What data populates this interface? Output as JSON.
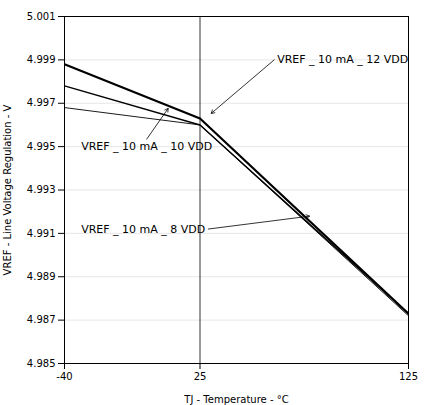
{
  "chart_data": {
    "type": "line",
    "xlabel": "TJ - Temperature - °C",
    "ylabel": "VREF - Line Voltage Regulation - V",
    "x": [
      -40,
      25,
      125
    ],
    "series": [
      {
        "color": "black",
        "values": [
          4.9988,
          4.9963,
          4.9873
        ]
      },
      {
        "color": "black",
        "values": [
          4.9978,
          4.996,
          4.9873
        ]
      },
      {
        "color": "black",
        "values": [
          4.9968,
          4.996,
          4.9872
        ]
      }
    ],
    "xlim": [
      -40,
      125
    ],
    "ylim": [
      4.985,
      5.001
    ],
    "xticks": [
      -40,
      25,
      125
    ],
    "yticks": [
      4.985,
      4.987,
      4.989,
      4.991,
      4.993,
      4.995,
      4.997,
      4.999,
      5.001
    ],
    "grid": "y",
    "vlines": [
      25
    ],
    "annotations": [
      {
        "text": "VREF _ 10 mA _ 12 VDD",
        "x": 30,
        "y": 4.9965,
        "text_x": 62,
        "text_y": 4.999
      },
      {
        "text": "VREF _ 10 mA _ 10 VDD",
        "x": 10,
        "y": 4.9968,
        "text_x": -32,
        "text_y": 4.995
      },
      {
        "text": "VREF _ 10 mA _ 8 VDD",
        "x": 78,
        "y": 4.9918,
        "text_x": -32,
        "text_y": 4.9912
      }
    ]
  }
}
